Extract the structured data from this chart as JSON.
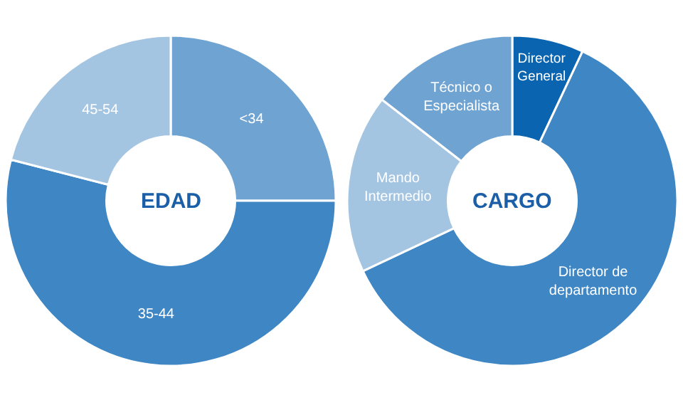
{
  "chart_data": [
    {
      "type": "donut",
      "title": "EDAD",
      "categories": [
        "<34",
        "35-44",
        "45-54"
      ],
      "values": [
        25,
        54,
        21
      ],
      "colors": [
        "#6fa3d2",
        "#3f86c4",
        "#a4c5e2"
      ],
      "legend": false
    },
    {
      "type": "donut",
      "title": "CARGO",
      "categories": [
        "Director\nGeneral",
        "Director de\ndepartamento",
        "Mando\nIntermedio",
        "Técnico o\nEspecialista"
      ],
      "values": [
        7,
        61,
        17.5,
        14.5
      ],
      "colors": [
        "#0a64b0",
        "#3f86c4",
        "#a4c5e2",
        "#6fa3d2"
      ],
      "legend": false
    }
  ]
}
